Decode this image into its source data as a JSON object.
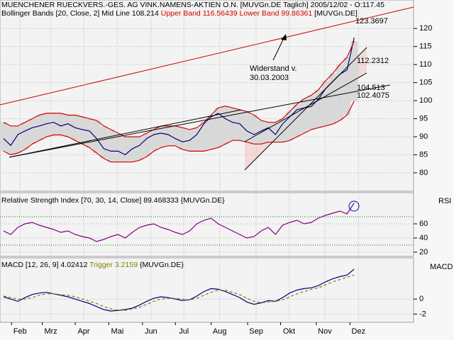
{
  "chart_data": [
    {
      "type": "line",
      "title": "MUENCHENER RUECKVERS.-GES. AG VINK.NAMENS-AKTIEN O.N. [MUVGn.DE  Taglich] 2005/12/02 - O:117.45",
      "subtitle": "Bollinger Bands [20, Close, 2] Mid Line 108.214",
      "symbol": "[MUVGn.DE]",
      "xlim": [
        -0.5,
        57.3
      ],
      "xticks": [
        {
          "value": 2.3,
          "label": "Feb"
        },
        {
          "value": 6.6,
          "label": "Mrz"
        },
        {
          "value": 11.2,
          "label": "Apr"
        },
        {
          "value": 15.9,
          "label": "Mai"
        },
        {
          "value": 20.6,
          "label": "Jun"
        },
        {
          "value": 25.2,
          "label": "Jul"
        },
        {
          "value": 30.2,
          "label": "Aug"
        },
        {
          "value": 35.3,
          "label": "Sep"
        },
        {
          "value": 39.9,
          "label": "Okt"
        },
        {
          "value": 44.9,
          "label": "Nov"
        },
        {
          "value": 49.6,
          "label": "Dez"
        }
      ],
      "ylim": [
        74.9,
        127.5
      ],
      "yticks": [
        80,
        85,
        90,
        95,
        100,
        105,
        110,
        115,
        120
      ],
      "grid": true,
      "band_color": "#d8d8d8",
      "series": [
        {
          "color": "#000080",
          "values": [
            89.5,
            87.6,
            90.6,
            91.6,
            92.5,
            93,
            93.6,
            94,
            93,
            93.6,
            92.5,
            92,
            91.6,
            89.5,
            86.7,
            86,
            86,
            85,
            86.7,
            87.6,
            89.5,
            90.6,
            91,
            90.6,
            89.5,
            88.6,
            89,
            90.6,
            93.6,
            95.5,
            96.5,
            95,
            94,
            93.6,
            91.6,
            90.6,
            91.6,
            92.5,
            90.6,
            93.6,
            95.5,
            97.5,
            98,
            98.4,
            100.4,
            103.3,
            105.3,
            107.3,
            108.5,
            117.5
          ]
        },
        {
          "name": "Upper Band 116.56439",
          "color": "#d00000",
          "values": [
            94,
            93,
            93,
            94,
            95,
            96,
            96.5,
            96.5,
            96.5,
            96,
            96,
            95.5,
            95,
            94.5,
            93,
            92,
            91,
            90,
            90,
            90,
            91,
            92,
            93,
            93,
            93,
            92.5,
            92,
            92.5,
            94,
            96,
            98,
            98.5,
            98,
            97.5,
            97,
            96,
            94.5,
            94,
            94,
            95,
            97,
            99,
            100.5,
            101.5,
            103,
            105.5,
            107.5,
            110,
            112,
            116.5
          ]
        },
        {
          "name": "Lower Band 99.86361",
          "color": "#d00000",
          "values": [
            86,
            85,
            85.5,
            86.5,
            88,
            89,
            90,
            90.5,
            90.5,
            90,
            89,
            88,
            87,
            85.5,
            84,
            83,
            83,
            83,
            83,
            83.5,
            84.5,
            86,
            87,
            87.5,
            87.5,
            86.5,
            86,
            86,
            86,
            86.5,
            87,
            88,
            89,
            89,
            88.5,
            88,
            88,
            88.5,
            88.5,
            88.5,
            89,
            90,
            91,
            92,
            92.5,
            93,
            93.5,
            94.5,
            96,
            99.9
          ]
        }
      ],
      "annotations": [
        {
          "text": "123.3697",
          "color": "#d00000"
        },
        {
          "text": "112.2312",
          "color": "#000000"
        },
        {
          "text": "104.513",
          "color": "#000000"
        },
        {
          "text": "102.4075",
          "color": "#000000"
        },
        {
          "text": "Widerstand v.",
          "color": "#0000c0"
        },
        {
          "text": "30.03.2003",
          "color": "#0000c0"
        }
      ]
    },
    {
      "type": "line",
      "title": "Relative Strength Index [70, 30, 14, Close] 89.468333 {MUVGn.DE}",
      "axis_label": "RSI",
      "ylim": [
        14,
        104
      ],
      "yticks": [
        20,
        40,
        60
      ],
      "levels": [
        70,
        30
      ],
      "level_color": "#008000",
      "series": [
        {
          "color": "#800080",
          "values": [
            50,
            45,
            55,
            60,
            62,
            58,
            55,
            52,
            48,
            50,
            45,
            42,
            40,
            35,
            38,
            42,
            45,
            40,
            48,
            55,
            58,
            60,
            55,
            52,
            48,
            45,
            50,
            60,
            65,
            68,
            60,
            55,
            50,
            45,
            40,
            42,
            50,
            55,
            45,
            58,
            62,
            65,
            60,
            62,
            68,
            72,
            75,
            78,
            74,
            89.5
          ]
        }
      ]
    },
    {
      "type": "line",
      "title": "MACD [12, 26, 9] 4.02412",
      "symbol": "{MUVGn.DE}",
      "axis_label": "MACD",
      "ylim": [
        -3.1,
        5.5
      ],
      "yticks": [
        -2,
        0
      ],
      "series": [
        {
          "color": "#000080",
          "values": [
            0.3,
            0,
            -0.3,
            0.2,
            0.6,
            0.8,
            0.9,
            0.7,
            0.5,
            0.3,
            0,
            -0.3,
            -0.6,
            -1.0,
            -1.4,
            -1.6,
            -1.5,
            -1.4,
            -1.2,
            -0.8,
            -0.3,
            0.1,
            0.3,
            0.2,
            0,
            -0.2,
            -0.1,
            0.4,
            1.0,
            1.4,
            1.3,
            1.0,
            0.6,
            0.2,
            -0.4,
            -0.7,
            -0.5,
            -0.2,
            -0.3,
            0.2,
            0.8,
            1.2,
            1.4,
            1.5,
            1.8,
            2.3,
            2.7,
            3.0,
            3.2,
            4.0
          ]
        },
        {
          "name": "Trigger 3.2159",
          "color": "#808000",
          "dashed": true,
          "values": [
            0.4,
            0.2,
            0,
            0,
            0.2,
            0.5,
            0.7,
            0.7,
            0.6,
            0.5,
            0.3,
            0,
            -0.3,
            -0.6,
            -1.0,
            -1.3,
            -1.5,
            -1.5,
            -1.3,
            -1.1,
            -0.7,
            -0.3,
            0,
            0.1,
            0.1,
            0,
            -0.1,
            0.1,
            0.5,
            0.9,
            1.2,
            1.2,
            0.9,
            0.6,
            0.1,
            -0.3,
            -0.5,
            -0.4,
            -0.3,
            -0.1,
            0.3,
            0.7,
            1.0,
            1.3,
            1.5,
            1.9,
            2.3,
            2.6,
            2.9,
            3.2
          ]
        }
      ]
    }
  ]
}
